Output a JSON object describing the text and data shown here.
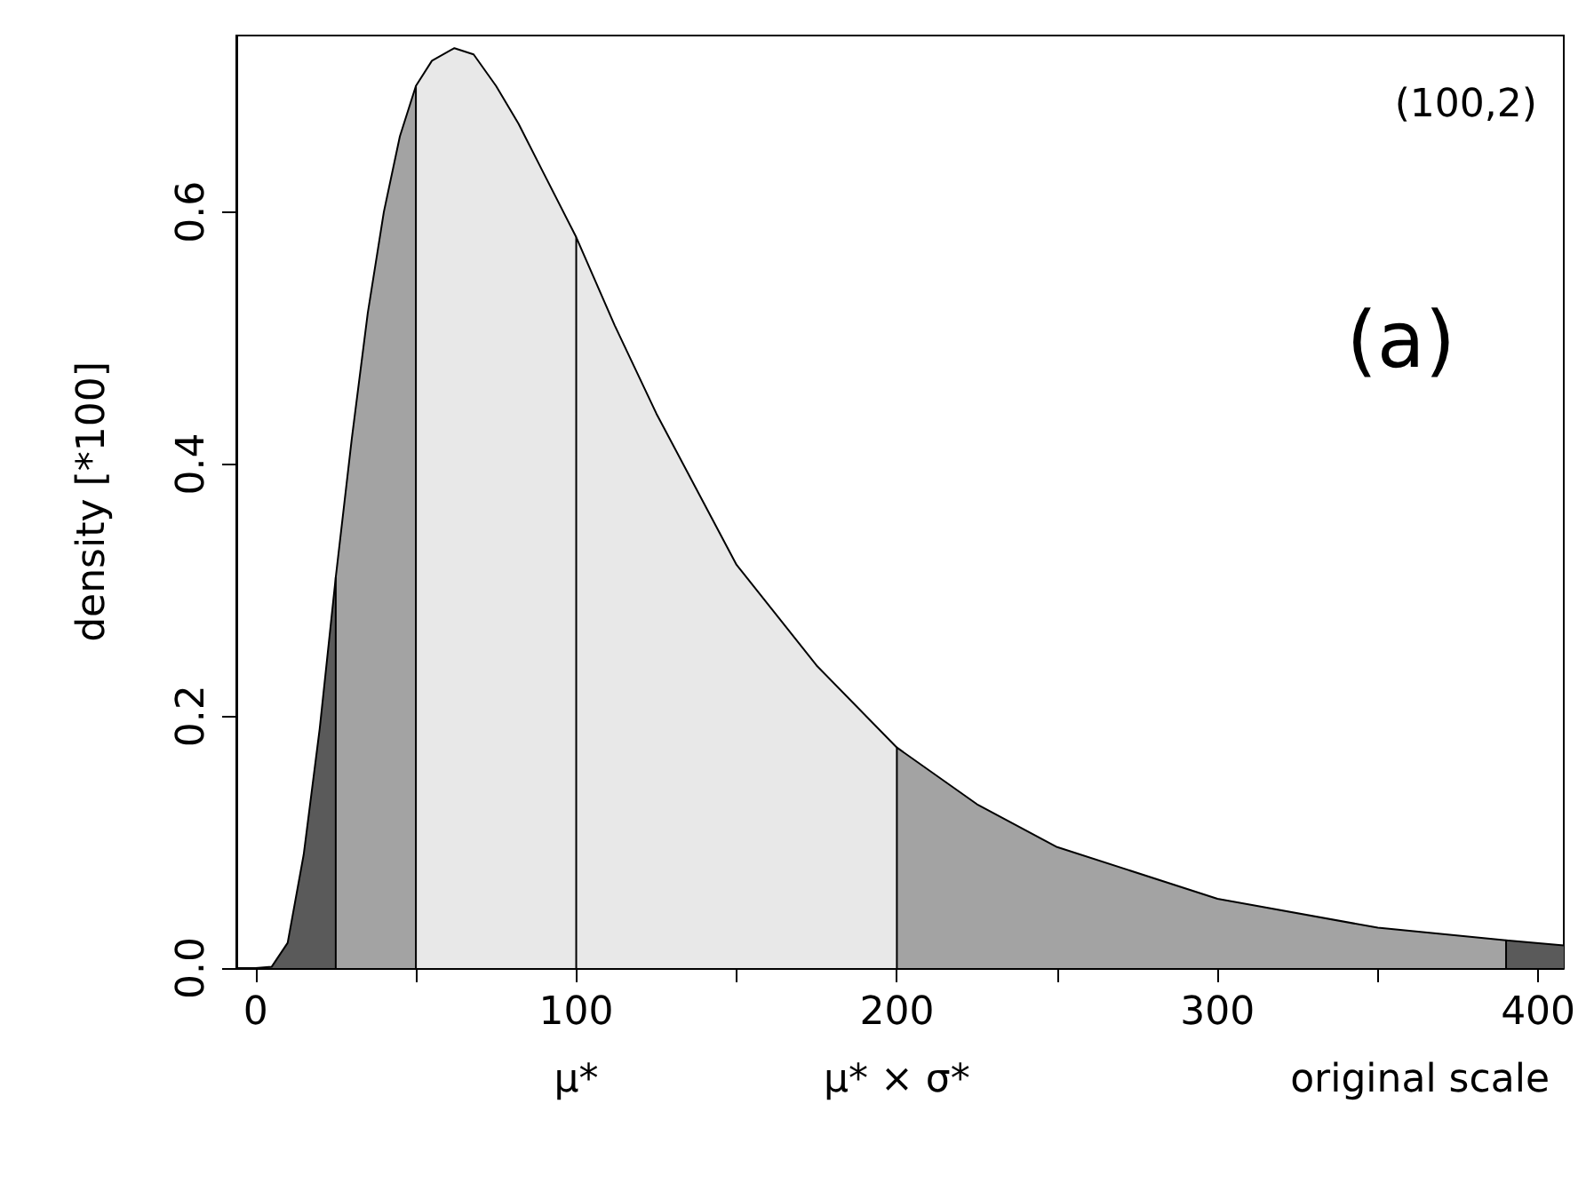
{
  "chart_data": {
    "type": "area",
    "ylabel": "density [*100]",
    "xlabel": "original scale",
    "xlim": [
      -6,
      408
    ],
    "ylim": [
      0,
      0.74
    ],
    "xticks": [
      0,
      {
        "value": 50,
        "label": null
      },
      100,
      {
        "value": 150,
        "label": null
      },
      200,
      {
        "value": 250,
        "label": null
      },
      300,
      {
        "value": 350,
        "label": null
      },
      400
    ],
    "yticks": [
      {
        "value": 0,
        "label": "0.0"
      },
      {
        "value": 0.2,
        "label": "0.2"
      },
      {
        "value": 0.4,
        "label": "0.4"
      },
      {
        "value": 0.6,
        "label": "0.6"
      }
    ],
    "grid": false,
    "marker": "none",
    "line_style": "solid",
    "series": [
      {
        "color": "#5a5a5a",
        "x": [
          0,
          5,
          10,
          15,
          20,
          25
        ],
        "values": [
          0,
          0.001,
          0.02,
          0.09,
          0.19,
          0.31
        ]
      },
      {
        "color": "#a3a3a3",
        "x": [
          25,
          25,
          30,
          35,
          40,
          45,
          50
        ],
        "values": [
          0,
          0.31,
          0.42,
          0.52,
          0.6,
          0.66,
          0.7
        ]
      },
      {
        "color": "#e8e8e8",
        "x": [
          50,
          50,
          55,
          62,
          68,
          75,
          82,
          90,
          100
        ],
        "values": [
          0,
          0.7,
          0.72,
          0.73,
          0.725,
          0.7,
          0.67,
          0.63,
          0.58
        ]
      },
      {
        "color": "#e8e8e8",
        "x": [
          100,
          100,
          112,
          125,
          150,
          175,
          200
        ],
        "values": [
          0,
          0.58,
          0.51,
          0.44,
          0.32,
          0.24,
          0.175
        ]
      },
      {
        "color": "#a3a3a3",
        "x": [
          200,
          200,
          225,
          250,
          300,
          350,
          390
        ],
        "values": [
          0,
          0.175,
          0.13,
          0.096,
          0.055,
          0.032,
          0.022
        ]
      },
      {
        "color": "#5a5a5a",
        "x": [
          390,
          390,
          408
        ],
        "values": [
          0,
          0.022,
          0.018
        ]
      }
    ],
    "annotations": [
      "(100,2)",
      "(a)",
      {
        "text": "μ*",
        "x": 100,
        "y": 0
      },
      {
        "text": "μ* × σ*",
        "x": 200,
        "y": 0
      }
    ]
  }
}
